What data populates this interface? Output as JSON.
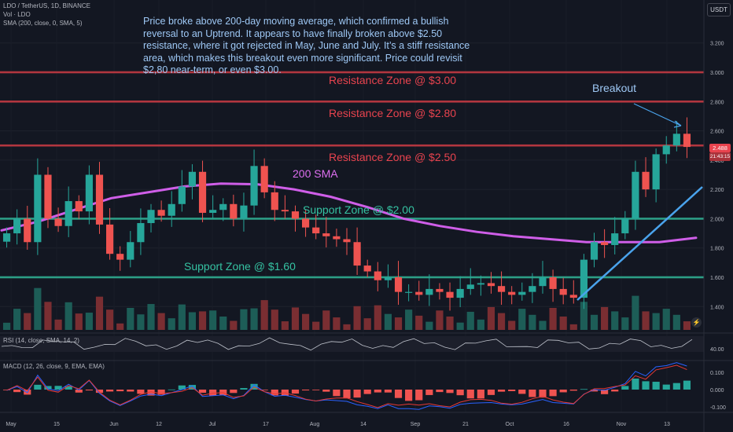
{
  "header": {
    "symbol_line": "LDO / TetherUS, 1D, BINANCE",
    "vol_line": "Vol · LDO",
    "sma_line": "SMA (200, close, 0, SMA, 5)",
    "rsi_line": "RSI (14, close, SMA, 14, 2)",
    "macd_line": "MACD (12, 26, close, 9, EMA, EMA)",
    "currency": "USDT"
  },
  "annotation": "Price broke above 200-day moving average, which confirmed a bullish reversal to an Uptrend. It appears to have finally broken above $2.50 resistance, where it got rejected in May, June and July. It’s a stiff resistance area, which makes this breakout even more significant. Price could revisit $2,80 near-term, or even $3.00.",
  "labels": {
    "res300": "Resistance Zone @ $3.00",
    "res280": "Resistance Zone @ $2.80",
    "res250": "Resistance Zone @ $2.50",
    "sup200": "Support Zone @ $2.00",
    "sup160": "Support Zone @ $1.60",
    "sma": "200 SMA",
    "breakout": "Breakout"
  },
  "price_tags": {
    "last": "2.488",
    "sub": "21:43:15"
  },
  "colors": {
    "background": "#131722",
    "up": "#26a69a",
    "down": "#ef5350",
    "resistance": "#b2363f",
    "support": "#2c9e86",
    "sma": "#cf5ee8",
    "trendline": "#4aa3ec",
    "rsi": "#bfc3cc",
    "macd": "#2962ff",
    "signal": "#e53935"
  },
  "chart_data": {
    "type": "candlestick",
    "price_axis_ticks": [
      "3.200",
      "3.000",
      "2.800",
      "2.600",
      "2.400",
      "2.200",
      "2.000",
      "1.800",
      "1.600",
      "1.400"
    ],
    "rsi_axis_ticks": [
      "40.00"
    ],
    "macd_axis_ticks": [
      "0.100",
      "0.000",
      "-0.100"
    ],
    "x_ticks": [
      "May",
      "15",
      "Jun",
      "12",
      "Jul",
      "17",
      "Aug",
      "14",
      "Sep",
      "21",
      "Oct",
      "16",
      "Nov",
      "13"
    ],
    "horizontal_levels": {
      "resistance": [
        3.0,
        2.8,
        2.5
      ],
      "support": [
        2.0,
        1.6
      ]
    },
    "last_price": 2.488,
    "sma200": [
      1.92,
      1.98,
      2.06,
      2.14,
      2.18,
      2.22,
      2.24,
      2.235,
      2.2,
      2.15,
      2.08,
      2.0,
      1.95,
      1.91,
      1.88,
      1.86,
      1.84,
      1.84,
      1.84,
      1.87
    ],
    "close": [
      1.9,
      2.0,
      1.84,
      2.3,
      2.0,
      1.95,
      2.12,
      2.05,
      2.3,
      1.96,
      1.76,
      1.72,
      1.84,
      1.97,
      2.06,
      2.02,
      2.1,
      2.22,
      2.32,
      2.04,
      2.06,
      2.1,
      2.0,
      2.09,
      2.36,
      2.18,
      2.06,
      2.05,
      2.0,
      1.94,
      1.9,
      1.88,
      1.86,
      1.84,
      1.68,
      1.64,
      1.58,
      1.6,
      1.5,
      1.5,
      1.48,
      1.52,
      1.5,
      1.46,
      1.52,
      1.55,
      1.56,
      1.54,
      1.5,
      1.48,
      1.5,
      1.54,
      1.6,
      1.52,
      1.48,
      1.46,
      1.72,
      1.84,
      1.82,
      1.9,
      2.0,
      2.32,
      2.2,
      2.44,
      2.5,
      2.58,
      2.49
    ]
  }
}
